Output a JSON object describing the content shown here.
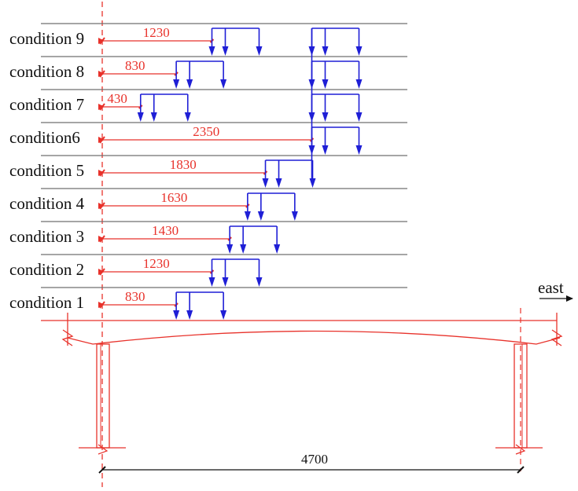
{
  "colors": {
    "dimension": "#e8322b",
    "load": "#1f1fd6",
    "lane": "#6f6f6f",
    "structure": "#e8322b",
    "text": "#111111"
  },
  "conditions": [
    {
      "label": "condition 1",
      "offset": 830
    },
    {
      "label": "condition 2",
      "offset": 1230
    },
    {
      "label": "condition 3",
      "offset": 1430
    },
    {
      "label": "condition 4",
      "offset": 1630
    },
    {
      "label": "condition 5",
      "offset": 1830
    },
    {
      "label": "condition6",
      "offset": 2350
    },
    {
      "label": "condition 7",
      "offset": 430
    },
    {
      "label": "condition 8",
      "offset": 830
    },
    {
      "label": "condition 9",
      "offset": 1230
    }
  ],
  "direction_label": "east",
  "span_label": "4700"
}
